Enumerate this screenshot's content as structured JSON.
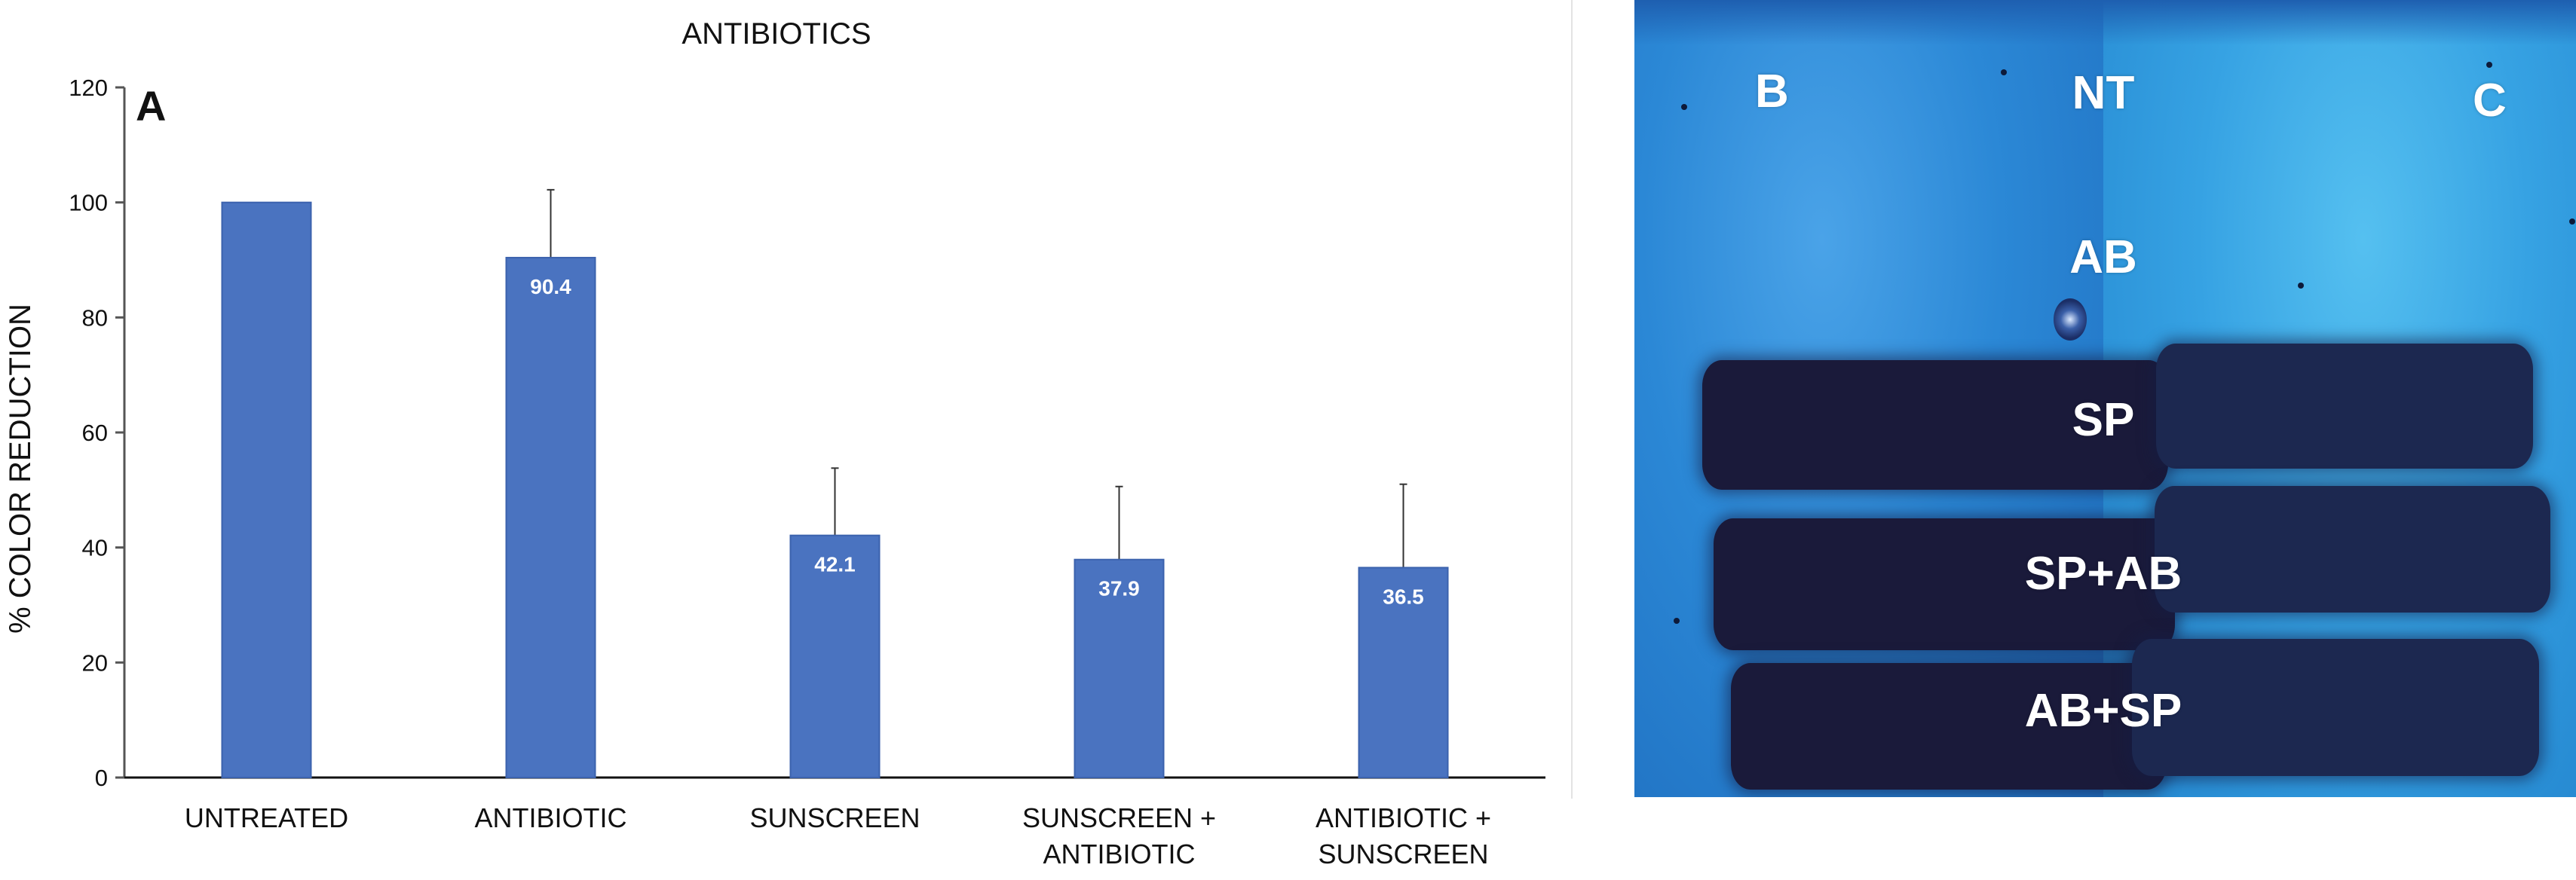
{
  "chart_data": {
    "type": "bar",
    "title": "ANTIBIOTICS",
    "panel_letter": "A",
    "ylabel": "% COLOR REDUCTION",
    "xlabel": "",
    "ylim": [
      0,
      120
    ],
    "yticks": [
      0,
      20,
      40,
      60,
      80,
      100,
      120
    ],
    "categories": [
      [
        "UNTREATED"
      ],
      [
        "ANTIBIOTIC"
      ],
      [
        "SUNSCREEN"
      ],
      [
        "SUNSCREEN +",
        "ANTIBIOTIC"
      ],
      [
        "ANTIBIOTIC +",
        "SUNSCREEN"
      ]
    ],
    "values": [
      100,
      90.4,
      42.1,
      37.9,
      36.5
    ],
    "value_labels": [
      "",
      "90.4",
      "42.1",
      "37.9",
      "36.5"
    ],
    "error": [
      0,
      11.8,
      11.7,
      12.7,
      14.5
    ],
    "bar_color": "#4a73c0",
    "grid": false,
    "legend": "none"
  },
  "photo": {
    "description_labels": {
      "left_plate": "B",
      "right_plate": "C",
      "rows": [
        "NT",
        "AB",
        "SP",
        "SP+AB",
        "AB+SP"
      ]
    },
    "colors": {
      "left_background": "#2b88d6",
      "right_background": "#36a2e3",
      "smear": "#1b1f45"
    }
  }
}
